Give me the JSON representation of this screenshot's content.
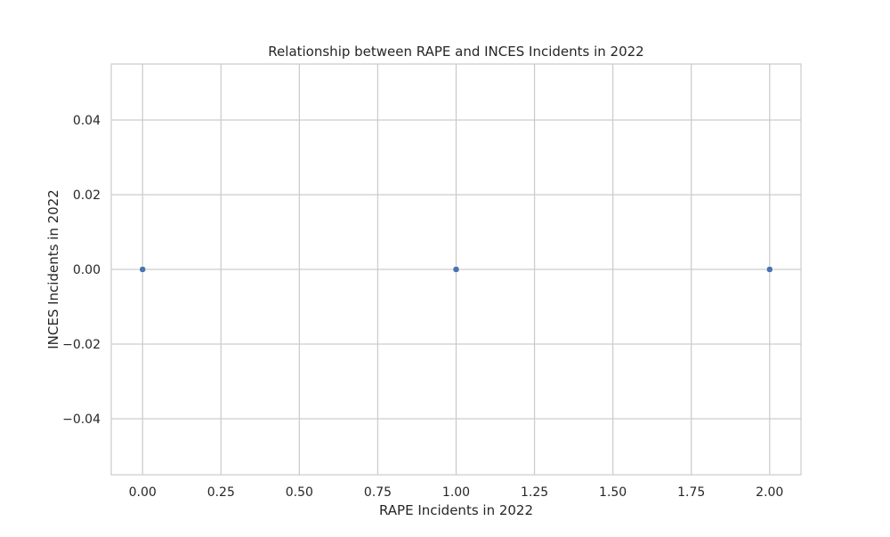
{
  "chart_data": {
    "type": "scatter",
    "title": "Relationship between RAPE and INCES Incidents in 2022",
    "xlabel": "RAPE Incidents in 2022",
    "ylabel": "INCES Incidents in 2022",
    "x": [
      0,
      1,
      2
    ],
    "y": [
      0,
      0,
      0
    ],
    "xlim": [
      -0.1,
      2.1
    ],
    "ylim": [
      -0.055,
      0.055
    ],
    "xticks": [
      0.0,
      0.25,
      0.5,
      0.75,
      1.0,
      1.25,
      1.5,
      1.75,
      2.0
    ],
    "xtick_labels": [
      "0.00",
      "0.25",
      "0.50",
      "0.75",
      "1.00",
      "1.25",
      "1.50",
      "1.75",
      "2.00"
    ],
    "yticks": [
      -0.04,
      -0.02,
      0.0,
      0.02,
      0.04
    ],
    "ytick_labels": [
      "−0.04",
      "−0.02",
      "0.00",
      "0.02",
      "0.04"
    ],
    "grid": true,
    "legend": "none",
    "colors": {
      "point": "#4c72b0",
      "grid": "#cccccc",
      "frame": "#cccccc",
      "text": "#262626",
      "background": "#ffffff"
    }
  }
}
